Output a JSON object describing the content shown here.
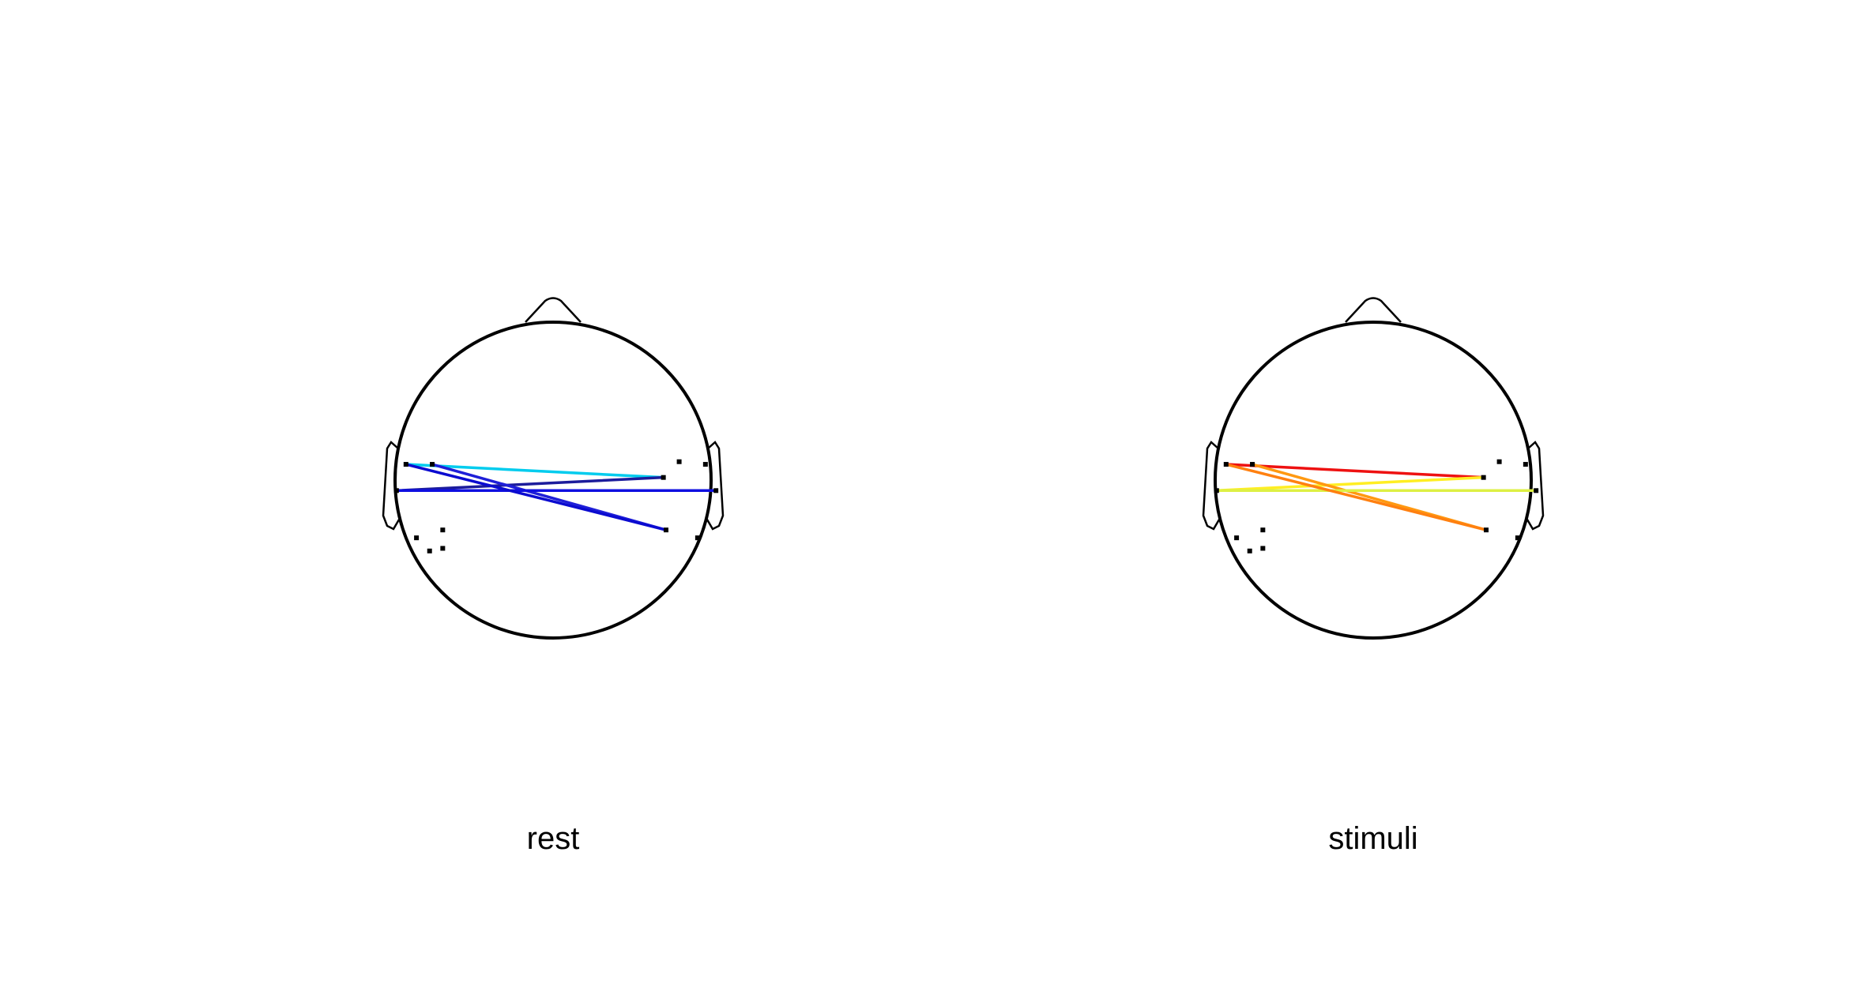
{
  "panels": [
    {
      "label": "rest",
      "sensors": [
        {
          "id": "L1",
          "x": -2.8,
          "y": 0.3
        },
        {
          "id": "L2",
          "x": -2.3,
          "y": 0.3
        },
        {
          "id": "L3",
          "x": -2.98,
          "y": -0.2
        },
        {
          "id": "L4",
          "x": -2.6,
          "y": -1.1
        },
        {
          "id": "L5",
          "x": -2.35,
          "y": -1.35
        },
        {
          "id": "L6",
          "x": -2.1,
          "y": -1.3
        },
        {
          "id": "L7",
          "x": -2.1,
          "y": -0.95
        },
        {
          "id": "R1",
          "x": 2.4,
          "y": 0.35
        },
        {
          "id": "R2",
          "x": 2.9,
          "y": 0.3
        },
        {
          "id": "R3",
          "x": 3.1,
          "y": -0.2
        },
        {
          "id": "R4",
          "x": 2.15,
          "y": -0.95
        },
        {
          "id": "R5",
          "x": 2.75,
          "y": -1.1
        },
        {
          "id": "M1",
          "x": 2.1,
          "y": 0.05
        }
      ],
      "connections": [
        {
          "from": "L1",
          "to": "M1",
          "color": "#00ccee"
        },
        {
          "from": "L3",
          "to": "M1",
          "color": "#1c1c9c"
        },
        {
          "from": "L2",
          "to": "R4",
          "color": "#1f1fd8"
        },
        {
          "from": "L3",
          "to": "R3",
          "color": "#0f0fe0"
        },
        {
          "from": "L1",
          "to": "R4",
          "color": "#0b0bd0"
        }
      ]
    },
    {
      "label": "stimuli",
      "sensors": [
        {
          "id": "L1",
          "x": -2.8,
          "y": 0.3
        },
        {
          "id": "L2",
          "x": -2.3,
          "y": 0.3
        },
        {
          "id": "L3",
          "x": -2.98,
          "y": -0.2
        },
        {
          "id": "L4",
          "x": -2.6,
          "y": -1.1
        },
        {
          "id": "L5",
          "x": -2.35,
          "y": -1.35
        },
        {
          "id": "L6",
          "x": -2.1,
          "y": -1.3
        },
        {
          "id": "L7",
          "x": -2.1,
          "y": -0.95
        },
        {
          "id": "R1",
          "x": 2.4,
          "y": 0.35
        },
        {
          "id": "R2",
          "x": 2.9,
          "y": 0.3
        },
        {
          "id": "R3",
          "x": 3.1,
          "y": -0.2
        },
        {
          "id": "R4",
          "x": 2.15,
          "y": -0.95
        },
        {
          "id": "R5",
          "x": 2.75,
          "y": -1.1
        },
        {
          "id": "M1",
          "x": 2.1,
          "y": 0.05
        }
      ],
      "connections": [
        {
          "from": "L1",
          "to": "M1",
          "color": "#ee1111"
        },
        {
          "from": "L3",
          "to": "M1",
          "color": "#ffee22"
        },
        {
          "from": "L2",
          "to": "R4",
          "color": "#ff9911"
        },
        {
          "from": "L3",
          "to": "R3",
          "color": "#ddf044"
        },
        {
          "from": "L1",
          "to": "R4",
          "color": "#ff8010"
        }
      ]
    }
  ]
}
